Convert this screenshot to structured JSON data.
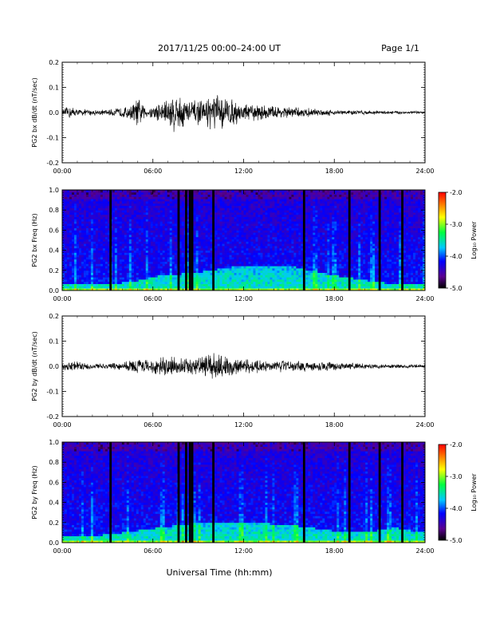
{
  "header": {
    "title": "2017/11/25  00:00–24:00 UT",
    "page": "Page 1/1"
  },
  "x_axis_label": "Universal Time (hh:mm)",
  "colorbar": {
    "label": "Log₁₀ Power",
    "ticks": [
      "-2.0",
      "-3.0",
      "-4.0",
      "-5.0"
    ],
    "range": [
      -5.0,
      -2.0
    ]
  },
  "chart_data": [
    {
      "type": "line",
      "ylabel": "PG2 bx dB/dt (nT/sec)",
      "xlim": [
        0,
        24
      ],
      "ylim": [
        -0.2,
        0.2
      ],
      "x_ticks": [
        "00:00",
        "06:00",
        "12:00",
        "18:00",
        "24:00"
      ],
      "y_ticks": [
        "0.2",
        "0.1",
        "0.0",
        "-0.1",
        "-0.2"
      ],
      "envelope": [
        {
          "x": 0,
          "amp": 0.012
        },
        {
          "x": 0.5,
          "amp": 0.03
        },
        {
          "x": 1,
          "amp": 0.015
        },
        {
          "x": 3,
          "amp": 0.012
        },
        {
          "x": 4.5,
          "amp": 0.03
        },
        {
          "x": 5,
          "amp": 0.065
        },
        {
          "x": 5.6,
          "amp": 0.02
        },
        {
          "x": 6.8,
          "amp": 0.06
        },
        {
          "x": 7.4,
          "amp": 0.09
        },
        {
          "x": 8.3,
          "amp": 0.06
        },
        {
          "x": 9.3,
          "amp": 0.05
        },
        {
          "x": 10,
          "amp": 0.085
        },
        {
          "x": 10.8,
          "amp": 0.07
        },
        {
          "x": 12,
          "amp": 0.04
        },
        {
          "x": 14,
          "amp": 0.03
        },
        {
          "x": 16,
          "amp": 0.02
        },
        {
          "x": 18,
          "amp": 0.012
        },
        {
          "x": 21,
          "amp": 0.008
        },
        {
          "x": 24,
          "amp": 0.006
        }
      ]
    },
    {
      "type": "heatmap",
      "ylabel": "PG2 bx Freq (Hz)",
      "xlim": [
        0,
        24
      ],
      "ylim": [
        0.0,
        1.0
      ],
      "x_ticks": [
        "00:00",
        "06:00",
        "12:00",
        "18:00",
        "24:00"
      ],
      "y_ticks": [
        "1.0",
        "0.8",
        "0.6",
        "0.4",
        "0.2",
        "0.0"
      ],
      "gaps_hours": [
        3.2,
        7.7,
        8.2,
        8.45,
        8.6,
        10.0,
        16.0,
        19.0,
        21.0,
        22.5
      ],
      "low_freq_band": [
        {
          "x": 0,
          "f": 0.06
        },
        {
          "x": 3,
          "f": 0.06
        },
        {
          "x": 5,
          "f": 0.1
        },
        {
          "x": 6.5,
          "f": 0.15
        },
        {
          "x": 9,
          "f": 0.18
        },
        {
          "x": 12,
          "f": 0.25
        },
        {
          "x": 15,
          "f": 0.25
        },
        {
          "x": 18,
          "f": 0.15
        },
        {
          "x": 21,
          "f": 0.08
        },
        {
          "x": 24,
          "f": 0.06
        }
      ]
    },
    {
      "type": "line",
      "ylabel": "PG2 by dB/dt (nT/sec)",
      "xlim": [
        0,
        24
      ],
      "ylim": [
        -0.2,
        0.2
      ],
      "x_ticks": [
        "00:00",
        "06:00",
        "12:00",
        "18:00",
        "24:00"
      ],
      "y_ticks": [
        "0.2",
        "0.1",
        "0.0",
        "-0.1",
        "-0.2"
      ],
      "envelope": [
        {
          "x": 0,
          "amp": 0.015
        },
        {
          "x": 0.5,
          "amp": 0.025
        },
        {
          "x": 2,
          "amp": 0.012
        },
        {
          "x": 4,
          "amp": 0.015
        },
        {
          "x": 5,
          "amp": 0.04
        },
        {
          "x": 5.5,
          "amp": 0.03
        },
        {
          "x": 7,
          "amp": 0.05
        },
        {
          "x": 8,
          "amp": 0.035
        },
        {
          "x": 9.3,
          "amp": 0.04
        },
        {
          "x": 10.2,
          "amp": 0.06
        },
        {
          "x": 10.8,
          "amp": 0.05
        },
        {
          "x": 12,
          "amp": 0.03
        },
        {
          "x": 15,
          "amp": 0.025
        },
        {
          "x": 18,
          "amp": 0.018
        },
        {
          "x": 21,
          "amp": 0.01
        },
        {
          "x": 24,
          "amp": 0.008
        }
      ]
    },
    {
      "type": "heatmap",
      "ylabel": "PG2 by Freq (Hz)",
      "xlim": [
        0,
        24
      ],
      "ylim": [
        0.0,
        1.0
      ],
      "x_ticks": [
        "00:00",
        "06:00",
        "12:00",
        "18:00",
        "24:00"
      ],
      "y_ticks": [
        "1.0",
        "0.8",
        "0.6",
        "0.4",
        "0.2",
        "0.0"
      ],
      "gaps_hours": [
        3.2,
        7.7,
        8.2,
        8.45,
        8.6,
        10.0,
        16.0,
        19.0,
        21.0,
        22.5
      ],
      "low_freq_band": [
        {
          "x": 0,
          "f": 0.06
        },
        {
          "x": 3,
          "f": 0.08
        },
        {
          "x": 5,
          "f": 0.12
        },
        {
          "x": 6.5,
          "f": 0.15
        },
        {
          "x": 9,
          "f": 0.2
        },
        {
          "x": 12,
          "f": 0.2
        },
        {
          "x": 15,
          "f": 0.18
        },
        {
          "x": 18,
          "f": 0.12
        },
        {
          "x": 20,
          "f": 0.1
        },
        {
          "x": 22,
          "f": 0.15
        },
        {
          "x": 24,
          "f": 0.1
        }
      ]
    }
  ]
}
